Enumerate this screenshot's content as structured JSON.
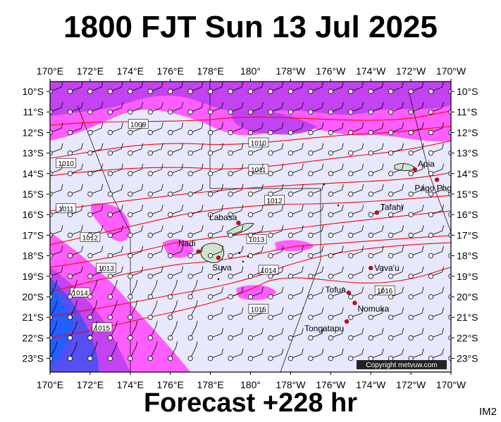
{
  "title": "1800 FJT Sun 13 Jul 2025",
  "subtitle": "Forecast +228 hr",
  "code": "IM2",
  "copyright": "Copyright metvuw.com",
  "lon_labels": [
    "170°E",
    "172°E",
    "174°E",
    "176°E",
    "178°E",
    "180°",
    "178°W",
    "176°W",
    "174°W",
    "172°W",
    "170°W"
  ],
  "lat_labels": [
    "10°S",
    "11°S",
    "12°S",
    "13°S",
    "14°S",
    "15°S",
    "16°S",
    "17°S",
    "18°S",
    "19°S",
    "20°S",
    "21°S",
    "22°S",
    "23°S"
  ],
  "places": [
    {
      "name": "Apia",
      "lon": -171.8,
      "lat": -13.8
    },
    {
      "name": "Pago Pago",
      "lon": -170.7,
      "lat": -14.3
    },
    {
      "name": "Tafahi",
      "lon": -173.7,
      "lat": -15.9
    },
    {
      "name": "Labasa",
      "lon": 179.4,
      "lat": -16.4
    },
    {
      "name": "Nadi",
      "lon": 177.4,
      "lat": -17.8
    },
    {
      "name": "Suva",
      "lon": 178.4,
      "lat": -18.1
    },
    {
      "name": "Vava'u",
      "lon": -174.0,
      "lat": -18.6
    },
    {
      "name": "Tofua",
      "lon": -175.1,
      "lat": -19.8
    },
    {
      "name": "Nomuka",
      "lon": -174.8,
      "lat": -20.3
    },
    {
      "name": "Tongatapu",
      "lon": -175.2,
      "lat": -21.2
    }
  ],
  "isobars": [
    {
      "label": "1009",
      "lon": 174.4,
      "lat": -11.6
    },
    {
      "label": "1010",
      "lon": -179.6,
      "lat": -12.5
    },
    {
      "label": "1010",
      "lon": 170.8,
      "lat": -13.5
    },
    {
      "label": "1011",
      "lon": -179.6,
      "lat": -13.8
    },
    {
      "label": "1011",
      "lon": 170.8,
      "lat": -15.7
    },
    {
      "label": "1012",
      "lon": -178.8,
      "lat": -15.3
    },
    {
      "label": "1012",
      "lon": 172.0,
      "lat": -17.1
    },
    {
      "label": "1013",
      "lon": -179.7,
      "lat": -17.2
    },
    {
      "label": "1013",
      "lon": 172.8,
      "lat": -18.6
    },
    {
      "label": "1014",
      "lon": -179.1,
      "lat": -18.7
    },
    {
      "label": "1014",
      "lon": 171.5,
      "lat": -19.8
    },
    {
      "label": "1015",
      "lon": -179.6,
      "lat": -20.6
    },
    {
      "label": "1015",
      "lon": 172.6,
      "lat": -21.5
    },
    {
      "label": "1016",
      "lon": -173.3,
      "lat": -19.7
    }
  ],
  "colors": {
    "sea": "#e8e8fc",
    "rain_light": "#ff55ff",
    "rain_medium": "#c040f0",
    "rain_heavy": "#5050f0",
    "rain_extreme": "#2060ff",
    "isobar": "#ff0000",
    "land": "#cfe3cf",
    "boundary": "#000000"
  }
}
